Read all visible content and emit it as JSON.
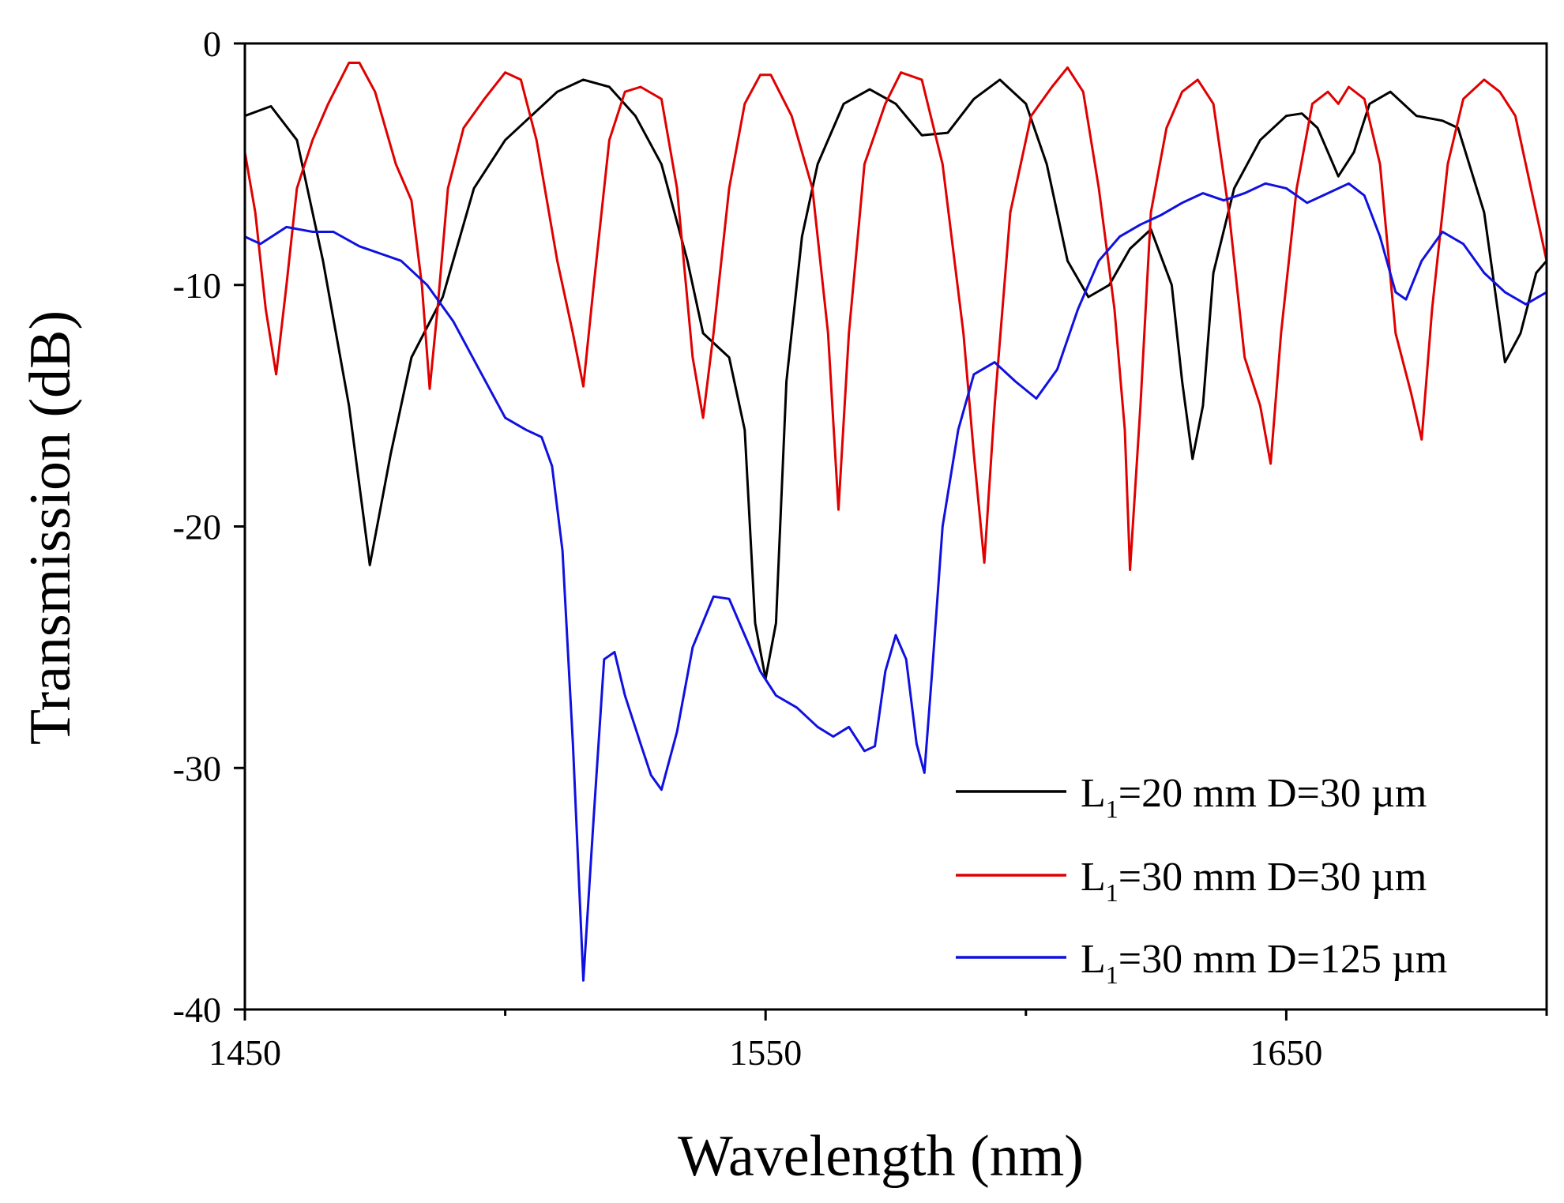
{
  "chart_data": {
    "type": "line",
    "title": "",
    "xlabel": "Wavelength (nm)",
    "ylabel": "Transmission (dB)",
    "xlim": [
      1450,
      1700
    ],
    "ylim": [
      -40,
      0
    ],
    "x_ticks": [
      1450,
      1550,
      1650
    ],
    "x_minor_ticks": [
      1500,
      1600,
      1700
    ],
    "y_ticks": [
      0,
      -10,
      -20,
      -30,
      -40
    ],
    "grid": false,
    "legend_position": "bottom-right",
    "series": [
      {
        "name": "L1=20 mm D=30 µm",
        "legend": {
          "main": "L",
          "sub": "1",
          "rest": "=20 mm D=30 µm"
        },
        "color": "#000000",
        "points": [
          [
            1450,
            -3
          ],
          [
            1455,
            -2.6
          ],
          [
            1460,
            -4
          ],
          [
            1465,
            -9
          ],
          [
            1470,
            -15
          ],
          [
            1474,
            -21.6
          ],
          [
            1478,
            -17
          ],
          [
            1482,
            -13
          ],
          [
            1488,
            -10.5
          ],
          [
            1494,
            -6
          ],
          [
            1500,
            -4
          ],
          [
            1505,
            -3
          ],
          [
            1510,
            -2
          ],
          [
            1515,
            -1.5
          ],
          [
            1520,
            -1.8
          ],
          [
            1525,
            -3
          ],
          [
            1530,
            -5
          ],
          [
            1535,
            -9
          ],
          [
            1538,
            -12
          ],
          [
            1543,
            -13
          ],
          [
            1546,
            -16
          ],
          [
            1548,
            -24
          ],
          [
            1550,
            -26.3
          ],
          [
            1552,
            -24
          ],
          [
            1554,
            -14
          ],
          [
            1557,
            -8
          ],
          [
            1560,
            -5
          ],
          [
            1565,
            -2.5
          ],
          [
            1570,
            -1.9
          ],
          [
            1575,
            -2.5
          ],
          [
            1580,
            -3.8
          ],
          [
            1585,
            -3.7
          ],
          [
            1590,
            -2.3
          ],
          [
            1595,
            -1.5
          ],
          [
            1600,
            -2.5
          ],
          [
            1604,
            -5
          ],
          [
            1608,
            -9
          ],
          [
            1612,
            -10.5
          ],
          [
            1616,
            -10
          ],
          [
            1620,
            -8.5
          ],
          [
            1624,
            -7.7
          ],
          [
            1628,
            -10
          ],
          [
            1630,
            -14
          ],
          [
            1632,
            -17.2
          ],
          [
            1634,
            -15
          ],
          [
            1636,
            -9.5
          ],
          [
            1640,
            -6
          ],
          [
            1645,
            -4
          ],
          [
            1650,
            -3
          ],
          [
            1653,
            -2.9
          ],
          [
            1656,
            -3.5
          ],
          [
            1660,
            -5.5
          ],
          [
            1663,
            -4.5
          ],
          [
            1666,
            -2.5
          ],
          [
            1670,
            -2
          ],
          [
            1675,
            -3
          ],
          [
            1680,
            -3.2
          ],
          [
            1683,
            -3.5
          ],
          [
            1688,
            -7
          ],
          [
            1692,
            -13.2
          ],
          [
            1695,
            -12
          ],
          [
            1698,
            -9.5
          ],
          [
            1700,
            -9
          ]
        ]
      },
      {
        "name": "L1=30 mm D=30 µm",
        "legend": {
          "main": "L",
          "sub": "1",
          "rest": "=30 mm D=30 µm"
        },
        "color": "#e00000",
        "points": [
          [
            1450,
            -4.5
          ],
          [
            1452,
            -7
          ],
          [
            1454,
            -11
          ],
          [
            1456,
            -13.7
          ],
          [
            1458,
            -10
          ],
          [
            1460,
            -6
          ],
          [
            1463,
            -4
          ],
          [
            1466,
            -2.5
          ],
          [
            1470,
            -0.8
          ],
          [
            1472,
            -0.8
          ],
          [
            1475,
            -2
          ],
          [
            1479,
            -5
          ],
          [
            1482,
            -6.5
          ],
          [
            1484,
            -10
          ],
          [
            1485.5,
            -14.3
          ],
          [
            1487,
            -11
          ],
          [
            1489,
            -6
          ],
          [
            1492,
            -3.5
          ],
          [
            1496,
            -2.3
          ],
          [
            1500,
            -1.2
          ],
          [
            1503,
            -1.5
          ],
          [
            1506,
            -4
          ],
          [
            1510,
            -9
          ],
          [
            1513,
            -12
          ],
          [
            1515,
            -14.2
          ],
          [
            1517,
            -10
          ],
          [
            1520,
            -4
          ],
          [
            1523,
            -2
          ],
          [
            1526,
            -1.8
          ],
          [
            1530,
            -2.3
          ],
          [
            1533,
            -6
          ],
          [
            1536,
            -13
          ],
          [
            1538,
            -15.5
          ],
          [
            1540,
            -12
          ],
          [
            1543,
            -6
          ],
          [
            1546,
            -2.5
          ],
          [
            1549,
            -1.3
          ],
          [
            1551,
            -1.3
          ],
          [
            1555,
            -3
          ],
          [
            1559,
            -6
          ],
          [
            1562,
            -12
          ],
          [
            1564,
            -19.3
          ],
          [
            1566,
            -12
          ],
          [
            1569,
            -5
          ],
          [
            1573,
            -2.5
          ],
          [
            1576,
            -1.2
          ],
          [
            1580,
            -1.5
          ],
          [
            1584,
            -5
          ],
          [
            1588,
            -12
          ],
          [
            1590,
            -17
          ],
          [
            1592,
            -21.5
          ],
          [
            1594,
            -15
          ],
          [
            1597,
            -7
          ],
          [
            1601,
            -3
          ],
          [
            1605,
            -1.8
          ],
          [
            1608,
            -1
          ],
          [
            1611,
            -2
          ],
          [
            1614,
            -6
          ],
          [
            1617,
            -11
          ],
          [
            1619,
            -16
          ],
          [
            1620,
            -21.8
          ],
          [
            1622,
            -15
          ],
          [
            1624,
            -7
          ],
          [
            1627,
            -3.5
          ],
          [
            1630,
            -2
          ],
          [
            1633,
            -1.5
          ],
          [
            1636,
            -2.5
          ],
          [
            1639,
            -7
          ],
          [
            1642,
            -13
          ],
          [
            1645,
            -15
          ],
          [
            1647,
            -17.4
          ],
          [
            1649,
            -12
          ],
          [
            1652,
            -6
          ],
          [
            1655,
            -2.5
          ],
          [
            1658,
            -2
          ],
          [
            1660,
            -2.5
          ],
          [
            1662,
            -1.8
          ],
          [
            1665,
            -2.3
          ],
          [
            1668,
            -5
          ],
          [
            1671,
            -12
          ],
          [
            1674,
            -14.5
          ],
          [
            1676,
            -16.4
          ],
          [
            1678,
            -11
          ],
          [
            1681,
            -5
          ],
          [
            1684,
            -2.3
          ],
          [
            1688,
            -1.5
          ],
          [
            1691,
            -2
          ],
          [
            1694,
            -3
          ],
          [
            1697,
            -6
          ],
          [
            1700,
            -9
          ]
        ]
      },
      {
        "name": "L1=30 mm D=125 µm",
        "legend": {
          "main": "L",
          "sub": "1",
          "rest": "=30 mm D=125 µm"
        },
        "color": "#1010e0",
        "points": [
          [
            1450,
            -8
          ],
          [
            1453,
            -8.3
          ],
          [
            1458,
            -7.6
          ],
          [
            1463,
            -7.8
          ],
          [
            1467,
            -7.8
          ],
          [
            1472,
            -8.4
          ],
          [
            1476,
            -8.7
          ],
          [
            1480,
            -9
          ],
          [
            1485,
            -10
          ],
          [
            1490,
            -11.5
          ],
          [
            1495,
            -13.5
          ],
          [
            1500,
            -15.5
          ],
          [
            1504,
            -16
          ],
          [
            1507,
            -16.3
          ],
          [
            1509,
            -17.5
          ],
          [
            1511,
            -21
          ],
          [
            1513,
            -29
          ],
          [
            1515,
            -38.8
          ],
          [
            1517,
            -32
          ],
          [
            1519,
            -25.5
          ],
          [
            1521,
            -25.2
          ],
          [
            1523,
            -27
          ],
          [
            1526,
            -29
          ],
          [
            1528,
            -30.3
          ],
          [
            1530,
            -30.9
          ],
          [
            1533,
            -28.5
          ],
          [
            1536,
            -25
          ],
          [
            1540,
            -22.9
          ],
          [
            1543,
            -23
          ],
          [
            1546,
            -24.5
          ],
          [
            1549,
            -26
          ],
          [
            1552,
            -27
          ],
          [
            1556,
            -27.5
          ],
          [
            1560,
            -28.3
          ],
          [
            1563,
            -28.7
          ],
          [
            1566,
            -28.3
          ],
          [
            1569,
            -29.3
          ],
          [
            1571,
            -29.1
          ],
          [
            1573,
            -26
          ],
          [
            1575,
            -24.5
          ],
          [
            1577,
            -25.5
          ],
          [
            1579,
            -29
          ],
          [
            1580.5,
            -30.2
          ],
          [
            1582,
            -26
          ],
          [
            1584,
            -20
          ],
          [
            1587,
            -16
          ],
          [
            1590,
            -13.7
          ],
          [
            1594,
            -13.2
          ],
          [
            1598,
            -14
          ],
          [
            1602,
            -14.7
          ],
          [
            1606,
            -13.5
          ],
          [
            1610,
            -11
          ],
          [
            1614,
            -9
          ],
          [
            1618,
            -8
          ],
          [
            1622,
            -7.5
          ],
          [
            1626,
            -7.1
          ],
          [
            1630,
            -6.6
          ],
          [
            1634,
            -6.2
          ],
          [
            1638,
            -6.5
          ],
          [
            1642,
            -6.2
          ],
          [
            1646,
            -5.8
          ],
          [
            1650,
            -6
          ],
          [
            1654,
            -6.6
          ],
          [
            1658,
            -6.2
          ],
          [
            1662,
            -5.8
          ],
          [
            1665,
            -6.3
          ],
          [
            1668,
            -8
          ],
          [
            1671,
            -10.3
          ],
          [
            1673,
            -10.6
          ],
          [
            1676,
            -9
          ],
          [
            1680,
            -7.8
          ],
          [
            1684,
            -8.3
          ],
          [
            1688,
            -9.5
          ],
          [
            1692,
            -10.3
          ],
          [
            1696,
            -10.8
          ],
          [
            1700,
            -10.3
          ]
        ]
      }
    ]
  }
}
